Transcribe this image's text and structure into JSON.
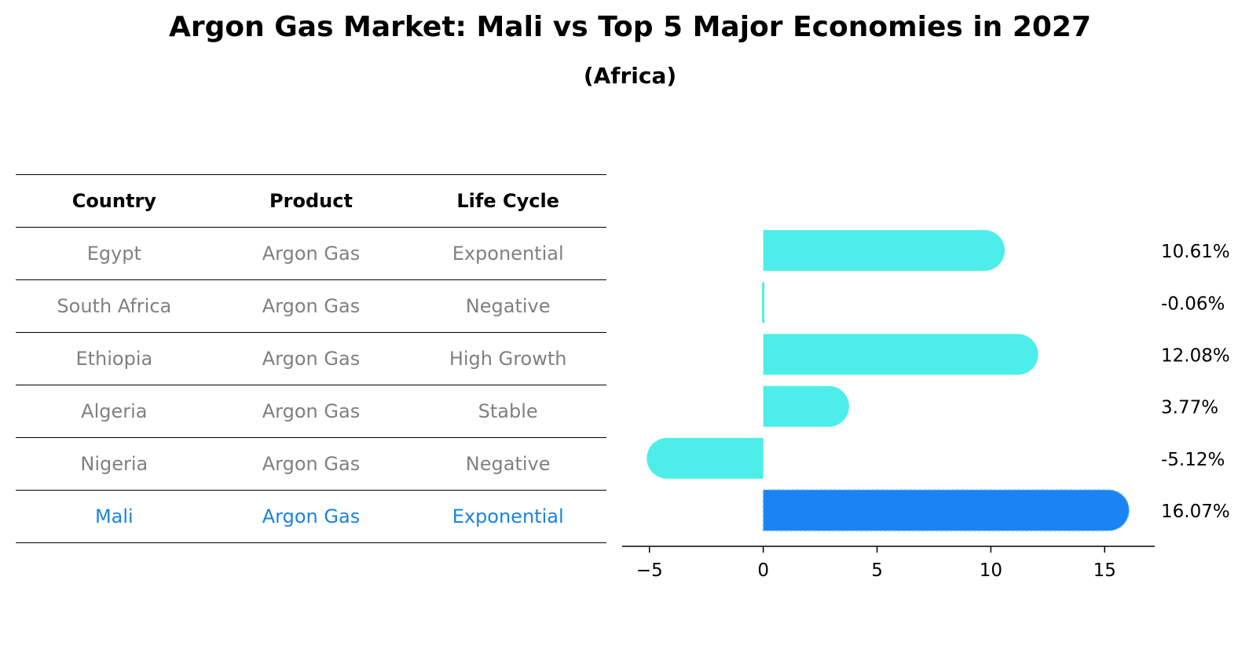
{
  "header": {
    "title": "Argon Gas Market: Mali vs Top 5 Major Economies in 2027",
    "subtitle": "(Africa)"
  },
  "table": {
    "columns": [
      "Country",
      "Product",
      "Life Cycle"
    ],
    "rows": [
      {
        "country": "Egypt",
        "product": "Argon Gas",
        "life_cycle": "Exponential"
      },
      {
        "country": "South Africa",
        "product": "Argon Gas",
        "life_cycle": "Negative"
      },
      {
        "country": "Ethiopia",
        "product": "Argon Gas",
        "life_cycle": "High Growth"
      },
      {
        "country": "Algeria",
        "product": "Argon Gas",
        "life_cycle": "Stable"
      },
      {
        "country": "Nigeria",
        "product": "Argon Gas",
        "life_cycle": "Negative"
      },
      {
        "country": "Mali",
        "product": "Argon Gas",
        "life_cycle": "Exponential"
      }
    ],
    "highlight_row": 5
  },
  "colors": {
    "bar": "#4deeea",
    "highlight": "#1a84f2",
    "highlight_text": "#1a84db",
    "muted_text": "#808080"
  },
  "chart_data": {
    "type": "bar",
    "orientation": "horizontal",
    "categories": [
      "Egypt",
      "South Africa",
      "Ethiopia",
      "Algeria",
      "Nigeria",
      "Mali"
    ],
    "values": [
      10.61,
      -0.06,
      12.08,
      3.77,
      -5.12,
      16.07
    ],
    "data_labels": [
      "10.61%",
      "-0.06%",
      "12.08%",
      "3.77%",
      "-5.12%",
      "16.07%"
    ],
    "xlim": [
      -6.2,
      17.2
    ],
    "xticks": [
      -5,
      0,
      5,
      10,
      15
    ],
    "xtick_labels": [
      "−5",
      "0",
      "5",
      "10",
      "15"
    ],
    "grid": false
  }
}
